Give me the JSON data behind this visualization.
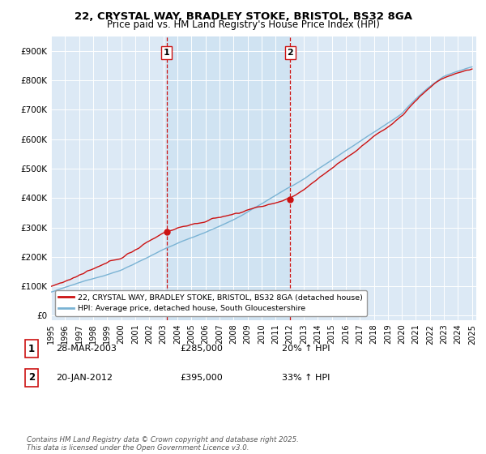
{
  "title_line1": "22, CRYSTAL WAY, BRADLEY STOKE, BRISTOL, BS32 8GA",
  "title_line2": "Price paid vs. HM Land Registry's House Price Index (HPI)",
  "ylabel_ticks": [
    "£0",
    "£100K",
    "£200K",
    "£300K",
    "£400K",
    "£500K",
    "£600K",
    "£700K",
    "£800K",
    "£900K"
  ],
  "ylabel_values": [
    0,
    100000,
    200000,
    300000,
    400000,
    500000,
    600000,
    700000,
    800000,
    900000
  ],
  "hpi_color": "#7ab3d4",
  "price_color": "#cc1111",
  "sale1_year": 2003.23,
  "sale1_price": 285000,
  "sale2_year": 2012.05,
  "sale2_price": 395000,
  "vline_color": "#cc1111",
  "legend_label1": "22, CRYSTAL WAY, BRADLEY STOKE, BRISTOL, BS32 8GA (detached house)",
  "legend_label2": "HPI: Average price, detached house, South Gloucestershire",
  "annotation1_label": "1",
  "annotation1_date": "28-MAR-2003",
  "annotation1_price": "£285,000",
  "annotation1_hpi": "20% ↑ HPI",
  "annotation2_label": "2",
  "annotation2_date": "20-JAN-2012",
  "annotation2_price": "£395,000",
  "annotation2_hpi": "33% ↑ HPI",
  "footnote": "Contains HM Land Registry data © Crown copyright and database right 2025.\nThis data is licensed under the Open Government Licence v3.0.",
  "bg_color": "#ffffff",
  "plot_bg_color": "#dce9f5",
  "highlight_bg_color": "#c8dff0",
  "grid_color": "#ffffff",
  "title_fontsize": 9.5,
  "subtitle_fontsize": 8.5
}
